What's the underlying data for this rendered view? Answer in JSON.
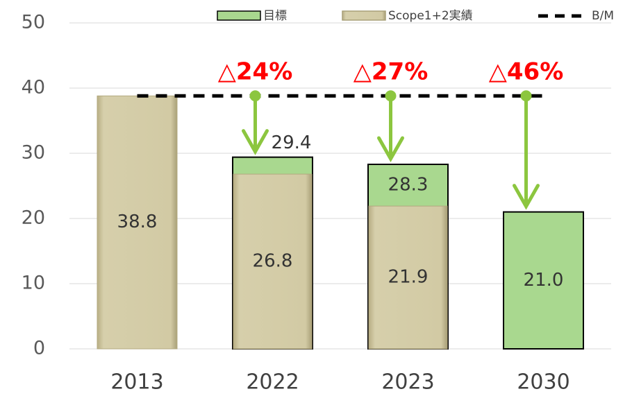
{
  "chart_data": {
    "type": "bar",
    "categories": [
      "2013",
      "2022",
      "2023",
      "2030"
    ],
    "series": [
      {
        "name": "目標",
        "color": "#a9d88f",
        "values": [
          null,
          29.4,
          28.3,
          21.0
        ],
        "value_labels": [
          null,
          "29.4",
          "28.3",
          "21.0"
        ]
      },
      {
        "name": "Scope1+2実績",
        "color": "#cfc69e",
        "values": [
          38.8,
          26.8,
          21.9,
          null
        ],
        "value_labels": [
          "38.8",
          "26.8",
          "21.9",
          null
        ]
      }
    ],
    "benchmark": {
      "name": "B/M",
      "value": 38.8,
      "color": "#000000"
    },
    "annotations": [
      {
        "category": "2022",
        "text": "△24%"
      },
      {
        "category": "2023",
        "text": "△27%"
      },
      {
        "category": "2030",
        "text": "△46%"
      }
    ],
    "arrow_color": "#8cc63f",
    "ylim": [
      0,
      50
    ],
    "yticks": [
      0,
      10,
      20,
      30,
      40,
      50
    ],
    "grid": true
  }
}
